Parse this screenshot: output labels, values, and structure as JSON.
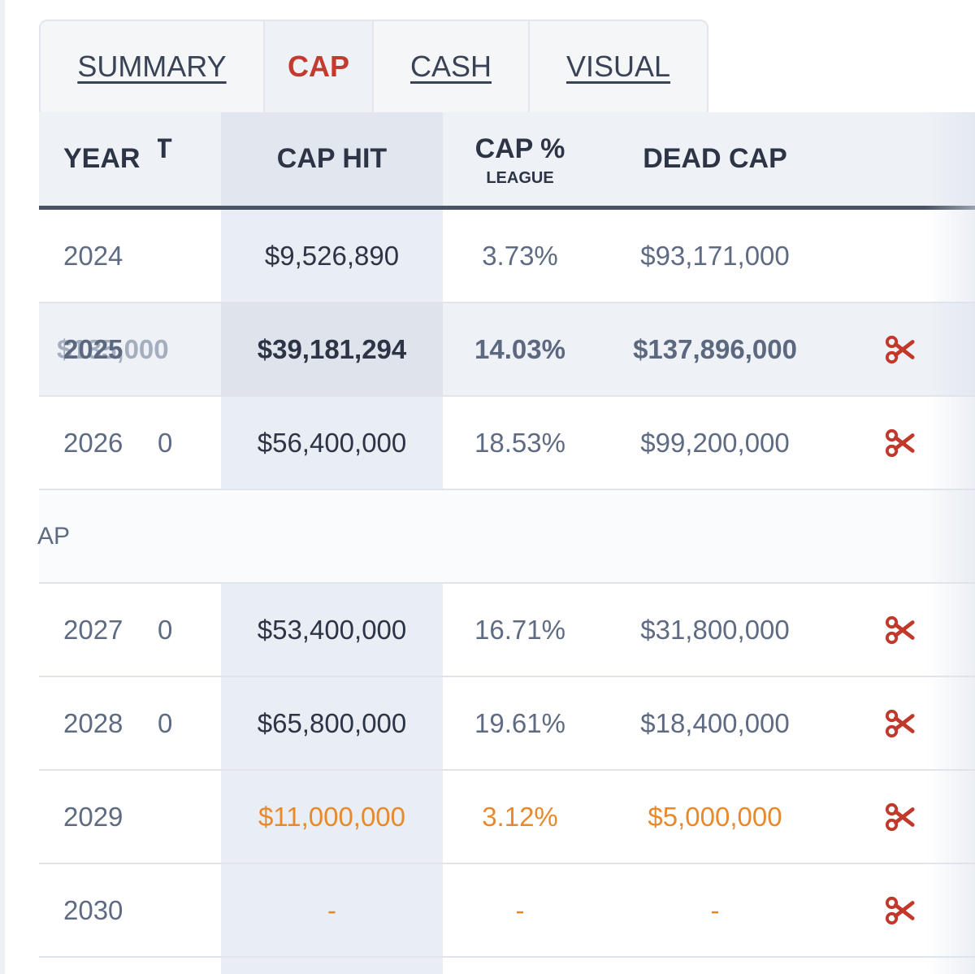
{
  "tabs": [
    {
      "label": "SUMMARY",
      "active": false
    },
    {
      "label": "CAP",
      "active": true
    },
    {
      "label": "CASH",
      "active": false
    },
    {
      "label": "VISUAL",
      "active": false
    }
  ],
  "header": {
    "year": "YEAR",
    "cut_partial": "JT",
    "cap_hit": "CAP HIT",
    "cap_pct": "CAP %",
    "cap_pct_sub": "LEAGUE",
    "dead_cap": "DEAD CAP"
  },
  "rows": [
    {
      "year": "2024",
      "extra": "",
      "cap_hit": "$9,526,890",
      "cap_pct": "3.73%",
      "dead_cap": "$93,171,000",
      "cut_icon": false
    },
    {
      "year": "2025",
      "extra": "$0,000",
      "ghost_text": "$135,000",
      "cap_hit": "$39,181,294",
      "cap_pct": "14.03%",
      "dead_cap": "$137,896,000",
      "cut_icon": true
    },
    {
      "year": "2026",
      "extra": "0",
      "cap_hit": "$56,400,000",
      "cap_pct": "18.53%",
      "dead_cap": "$99,200,000",
      "cut_icon": true
    },
    {
      "year": "2027",
      "extra": "0",
      "cap_hit": "$53,400,000",
      "cap_pct": "16.71%",
      "dead_cap": "$31,800,000",
      "cut_icon": true
    },
    {
      "year": "2028",
      "extra": "0",
      "cap_hit": "$65,800,000",
      "cap_pct": "19.61%",
      "dead_cap": "$18,400,000",
      "cut_icon": true
    },
    {
      "year": "2029",
      "extra": "",
      "cap_hit": "$11,000,000",
      "cap_pct": "3.12%",
      "dead_cap": "$5,000,000",
      "cut_icon": true
    },
    {
      "year": "2030",
      "extra": "",
      "cap_hit": "-",
      "cap_pct": "-",
      "dead_cap": "-",
      "cut_icon": true
    }
  ],
  "separator": {
    "label": "AP"
  },
  "colors": {
    "active_tab": "#c33a2f",
    "future_value": "#e8892b",
    "scissors": "#c0392b",
    "header_rule": "#4a5365"
  },
  "icons": {
    "cut": "scissors-icon"
  }
}
